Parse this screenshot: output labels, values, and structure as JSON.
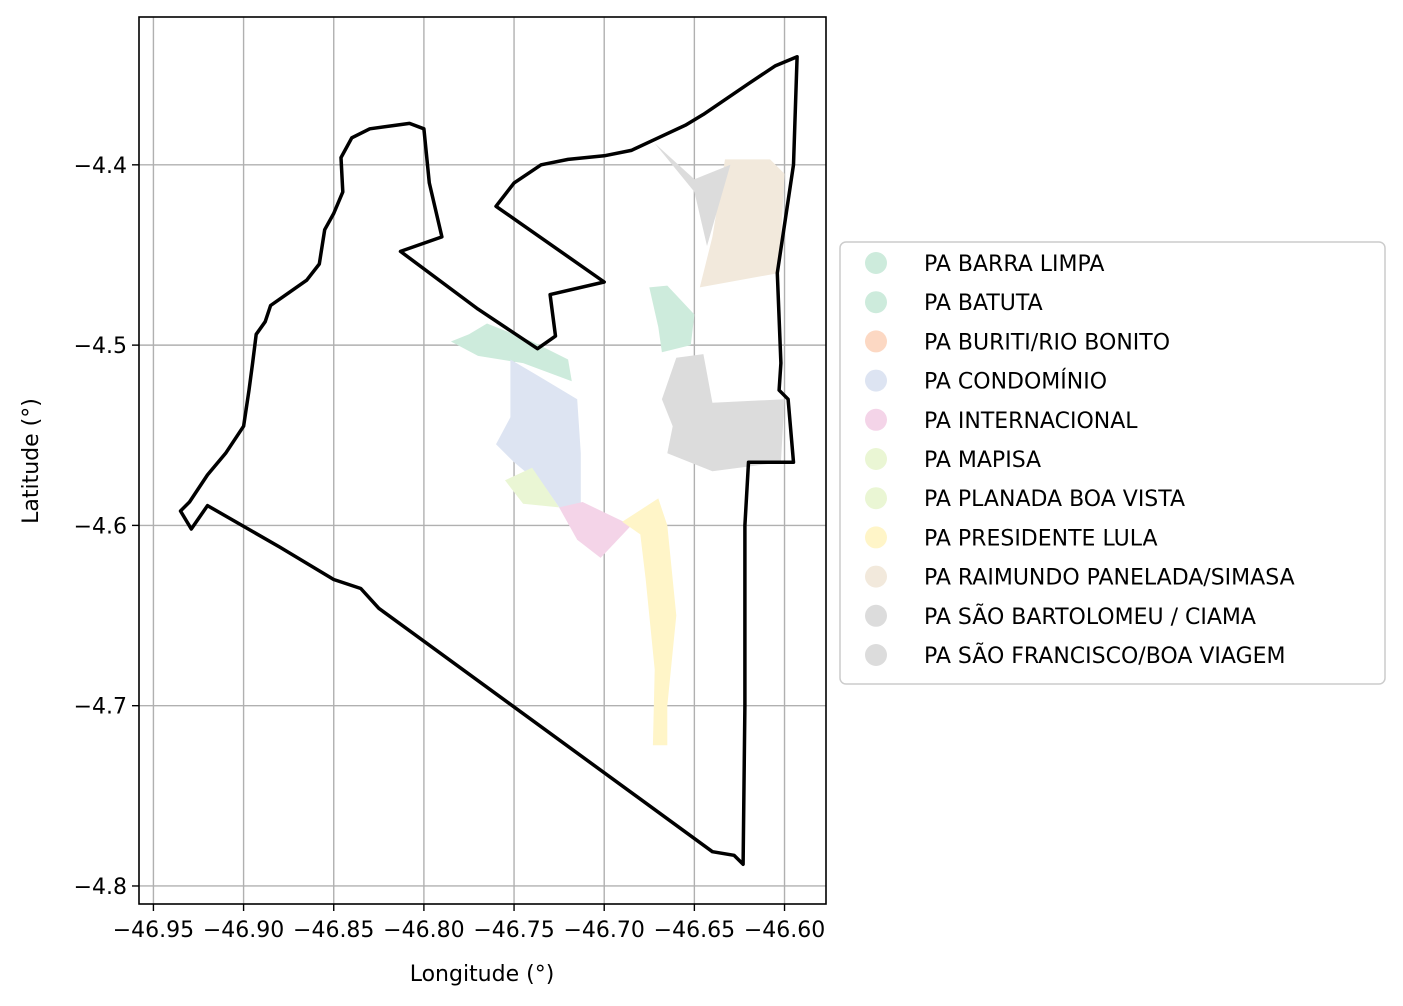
{
  "chart_data": {
    "type": "map",
    "title": "",
    "xlabel": "Longitude (°)",
    "ylabel": "Latitude (°)",
    "xlim": [
      -46.958,
      -46.577
    ],
    "ylim": [
      -4.81,
      -4.318
    ],
    "grid": true,
    "legend_placement": "right",
    "x_ticks": [
      {
        "value": -46.95,
        "label": "−46.95"
      },
      {
        "value": -46.9,
        "label": "−46.90"
      },
      {
        "value": -46.85,
        "label": "−46.85"
      },
      {
        "value": -46.8,
        "label": "−46.80"
      },
      {
        "value": -46.75,
        "label": "−46.75"
      },
      {
        "value": -46.7,
        "label": "−46.70"
      },
      {
        "value": -46.65,
        "label": "−46.65"
      },
      {
        "value": -46.6,
        "label": "−46.60"
      }
    ],
    "y_ticks": [
      {
        "value": -4.4,
        "label": "−4.4"
      },
      {
        "value": -4.5,
        "label": "−4.5"
      },
      {
        "value": -4.6,
        "label": "−4.6"
      },
      {
        "value": -4.7,
        "label": "−4.7"
      },
      {
        "value": -4.8,
        "label": "−4.8"
      }
    ],
    "boundary": {
      "color": "#000000",
      "coords": [
        [
          -46.935,
          -4.592
        ],
        [
          -46.929,
          -4.602
        ],
        [
          -46.92,
          -4.589
        ],
        [
          -46.88,
          -4.612
        ],
        [
          -46.85,
          -4.63
        ],
        [
          -46.835,
          -4.635
        ],
        [
          -46.825,
          -4.646
        ],
        [
          -46.64,
          -4.781
        ],
        [
          -46.628,
          -4.783
        ],
        [
          -46.623,
          -4.788
        ],
        [
          -46.622,
          -4.7
        ],
        [
          -46.622,
          -4.6
        ],
        [
          -46.62,
          -4.565
        ],
        [
          -46.595,
          -4.565
        ],
        [
          -46.598,
          -4.53
        ],
        [
          -46.603,
          -4.525
        ],
        [
          -46.602,
          -4.51
        ],
        [
          -46.604,
          -4.46
        ],
        [
          -46.595,
          -4.4
        ],
        [
          -46.593,
          -4.34
        ],
        [
          -46.605,
          -4.345
        ],
        [
          -46.62,
          -4.355
        ],
        [
          -46.645,
          -4.372
        ],
        [
          -46.655,
          -4.378
        ],
        [
          -46.67,
          -4.385
        ],
        [
          -46.685,
          -4.392
        ],
        [
          -46.7,
          -4.395
        ],
        [
          -46.72,
          -4.397
        ],
        [
          -46.735,
          -4.4
        ],
        [
          -46.75,
          -4.41
        ],
        [
          -46.76,
          -4.423
        ],
        [
          -46.75,
          -4.43
        ],
        [
          -46.7,
          -4.465
        ],
        [
          -46.73,
          -4.472
        ],
        [
          -46.727,
          -4.495
        ],
        [
          -46.737,
          -4.502
        ],
        [
          -46.77,
          -4.48
        ],
        [
          -46.813,
          -4.448
        ],
        [
          -46.79,
          -4.44
        ],
        [
          -46.797,
          -4.41
        ],
        [
          -46.8,
          -4.38
        ],
        [
          -46.808,
          -4.377
        ],
        [
          -46.83,
          -4.38
        ],
        [
          -46.84,
          -4.385
        ],
        [
          -46.846,
          -4.396
        ],
        [
          -46.845,
          -4.415
        ],
        [
          -46.85,
          -4.427
        ],
        [
          -46.855,
          -4.436
        ],
        [
          -46.858,
          -4.455
        ],
        [
          -46.865,
          -4.464
        ],
        [
          -46.875,
          -4.471
        ],
        [
          -46.885,
          -4.478
        ],
        [
          -46.888,
          -4.487
        ],
        [
          -46.893,
          -4.494
        ],
        [
          -46.895,
          -4.51
        ],
        [
          -46.897,
          -4.525
        ],
        [
          -46.9,
          -4.545
        ],
        [
          -46.91,
          -4.56
        ],
        [
          -46.92,
          -4.572
        ],
        [
          -46.93,
          -4.587
        ],
        [
          -46.935,
          -4.592
        ]
      ]
    },
    "legend": [
      {
        "name": "PA BARRA LIMPA",
        "color": "#cdebdc"
      },
      {
        "name": "PA BATUTA",
        "color": "#cdebdc"
      },
      {
        "name": "PA BURITI/RIO BONITO",
        "color": "#fcd8c3"
      },
      {
        "name": "PA CONDOMÍNIO",
        "color": "#dde4f2"
      },
      {
        "name": "PA INTERNACIONAL",
        "color": "#f4d4e8"
      },
      {
        "name": "PA MAPISA",
        "color": "#eaf6d4"
      },
      {
        "name": "PA PLANADA BOA VISTA",
        "color": "#eaf6d4"
      },
      {
        "name": "PA PRESIDENTE LULA",
        "color": "#fff5c8"
      },
      {
        "name": "PA RAIMUNDO PANELADA/SIMASA",
        "color": "#f2e9dc"
      },
      {
        "name": "PA SÃO BARTOLOMEU / CIAMA",
        "color": "#dcdcdc"
      },
      {
        "name": "PA SÃO FRANCISCO/BOA VIAGEM",
        "color": "#dcdcdc"
      }
    ],
    "areas": [
      {
        "name": "PA BARRA LIMPA",
        "color": "#cdebdc",
        "coords": [
          [
            -46.785,
            -4.498
          ],
          [
            -46.775,
            -4.494
          ],
          [
            -46.765,
            -4.488
          ],
          [
            -46.74,
            -4.498
          ],
          [
            -46.72,
            -4.508
          ],
          [
            -46.718,
            -4.52
          ],
          [
            -46.745,
            -4.51
          ],
          [
            -46.77,
            -4.506
          ],
          [
            -46.785,
            -4.498
          ]
        ]
      },
      {
        "name": "PA BATUTA",
        "color": "#cdebdc",
        "coords": [
          [
            -46.675,
            -4.468
          ],
          [
            -46.665,
            -4.467
          ],
          [
            -46.65,
            -4.483
          ],
          [
            -46.652,
            -4.5
          ],
          [
            -46.668,
            -4.504
          ],
          [
            -46.67,
            -4.49
          ],
          [
            -46.675,
            -4.468
          ]
        ]
      },
      {
        "name": "PA CONDOMÍNIO",
        "color": "#dde4f2",
        "coords": [
          [
            -46.752,
            -4.508
          ],
          [
            -46.74,
            -4.515
          ],
          [
            -46.715,
            -4.53
          ],
          [
            -46.713,
            -4.56
          ],
          [
            -46.713,
            -4.59
          ],
          [
            -46.718,
            -4.6
          ],
          [
            -46.732,
            -4.58
          ],
          [
            -46.75,
            -4.565
          ],
          [
            -46.76,
            -4.555
          ],
          [
            -46.752,
            -4.54
          ],
          [
            -46.752,
            -4.508
          ]
        ]
      },
      {
        "name": "PA INTERNACIONAL",
        "color": "#f4d4e8",
        "coords": [
          [
            -46.725,
            -4.59
          ],
          [
            -46.715,
            -4.608
          ],
          [
            -46.702,
            -4.618
          ],
          [
            -46.685,
            -4.6
          ],
          [
            -46.712,
            -4.587
          ],
          [
            -46.725,
            -4.59
          ]
        ]
      },
      {
        "name": "PA MAPISA",
        "color": "#eaf6d4",
        "coords": [
          [
            -46.755,
            -4.575
          ],
          [
            -46.74,
            -4.568
          ],
          [
            -46.725,
            -4.59
          ],
          [
            -46.745,
            -4.588
          ],
          [
            -46.755,
            -4.575
          ]
        ]
      },
      {
        "name": "PA PRESIDENTE LULA",
        "color": "#fff5c8",
        "coords": [
          [
            -46.69,
            -4.598
          ],
          [
            -46.67,
            -4.585
          ],
          [
            -46.665,
            -4.6
          ],
          [
            -46.66,
            -4.65
          ],
          [
            -46.665,
            -4.7
          ],
          [
            -46.665,
            -4.722
          ],
          [
            -46.673,
            -4.722
          ],
          [
            -46.672,
            -4.68
          ],
          [
            -46.677,
            -4.63
          ],
          [
            -46.68,
            -4.605
          ],
          [
            -46.69,
            -4.598
          ]
        ]
      },
      {
        "name": "PA RAIMUNDO PANELADA/SIMASA",
        "color": "#f2e9dc",
        "coords": [
          [
            -46.633,
            -4.397
          ],
          [
            -46.608,
            -4.397
          ],
          [
            -46.6,
            -4.405
          ],
          [
            -46.603,
            -4.46
          ],
          [
            -46.647,
            -4.468
          ],
          [
            -46.64,
            -4.44
          ],
          [
            -46.633,
            -4.397
          ]
        ]
      },
      {
        "name": "PA SÃO BARTOLOMEU / CIAMA",
        "color": "#dcdcdc",
        "coords": [
          [
            -46.672,
            -4.388
          ],
          [
            -46.65,
            -4.415
          ],
          [
            -46.643,
            -4.445
          ],
          [
            -46.63,
            -4.4
          ],
          [
            -46.65,
            -4.408
          ],
          [
            -46.672,
            -4.388
          ]
        ]
      },
      {
        "name": "PA SÃO FRANCISCO/BOA VIAGEM",
        "color": "#dcdcdc",
        "coords": [
          [
            -46.66,
            -4.507
          ],
          [
            -46.645,
            -4.505
          ],
          [
            -46.64,
            -4.532
          ],
          [
            -46.6,
            -4.53
          ],
          [
            -46.602,
            -4.565
          ],
          [
            -46.64,
            -4.57
          ],
          [
            -46.665,
            -4.56
          ],
          [
            -46.662,
            -4.545
          ],
          [
            -46.668,
            -4.53
          ],
          [
            -46.66,
            -4.507
          ]
        ]
      }
    ]
  }
}
